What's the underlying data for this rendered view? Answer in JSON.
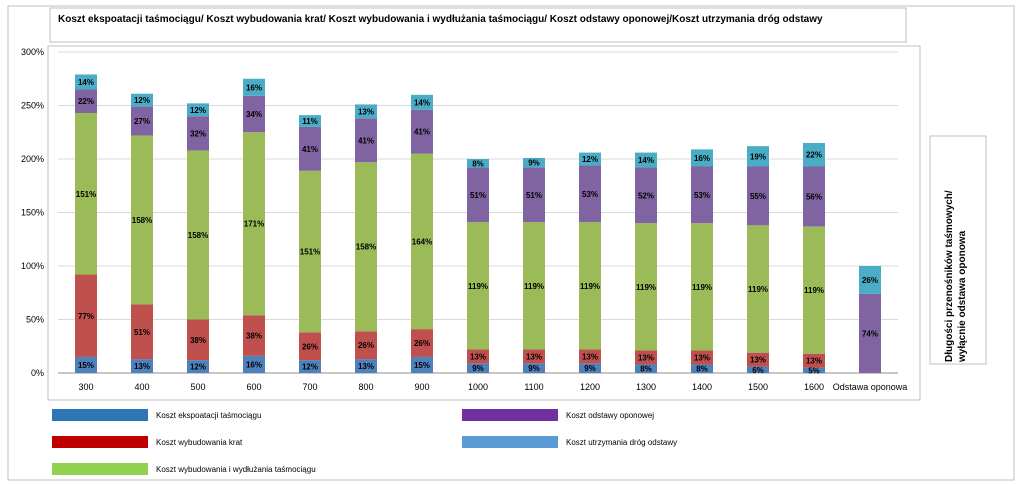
{
  "chart_data": {
    "type": "bar",
    "stacked": true,
    "title": "Koszt ekspoatacji taśmociągu/ Koszt wybudowania krat/ Koszt wybudowania i wydłużania taśmociągu/ Koszt odstawy oponowej/Koszt utrzymania dróg odstawy",
    "side_label_lines": [
      "Długości przenośników  taśmowych/",
      "wyłącnie odstawa oponowa"
    ],
    "categories": [
      "300",
      "400",
      "500",
      "600",
      "700",
      "800",
      "900",
      "1000",
      "1100",
      "1200",
      "1300",
      "1400",
      "1500",
      "1600",
      "Odstawa oponowa"
    ],
    "ylim": [
      0,
      300
    ],
    "yticks": [
      0,
      50,
      100,
      150,
      200,
      250,
      300
    ],
    "ytick_labels": [
      "0%",
      "50%",
      "100%",
      "150%",
      "200%",
      "250%",
      "300%"
    ],
    "grid": true,
    "legend_position": "bottom",
    "series": [
      {
        "name": "Koszt ekspoatacji taśmociągu",
        "color": "#4F81BD",
        "legend_color": "#2E75B6",
        "values": [
          15,
          13,
          12,
          16,
          12,
          13,
          15,
          9,
          9,
          9,
          8,
          8,
          6,
          5,
          0
        ],
        "labels": [
          "15%",
          "13%",
          "12%",
          "16%",
          "12%",
          "13%",
          "15%",
          "9%",
          "9%",
          "9%",
          "8%",
          "8%",
          "6%",
          "5%",
          ""
        ]
      },
      {
        "name": "Koszt wybudowania krat",
        "color": "#C0504D",
        "legend_color": "#C00000",
        "values": [
          77,
          51,
          38,
          38,
          26,
          26,
          26,
          13,
          13,
          13,
          13,
          13,
          13,
          13,
          0
        ],
        "labels": [
          "77%",
          "51%",
          "38%",
          "38%",
          "26%",
          "26%",
          "26%",
          "13%",
          "13%",
          "13%",
          "13%",
          "13%",
          "13%",
          "13%",
          ""
        ]
      },
      {
        "name": "Koszt wybudowania i wydłużania taśmociągu",
        "color": "#9BBB59",
        "legend_color": "#92D050",
        "values": [
          151,
          158,
          158,
          171,
          151,
          158,
          164,
          119,
          119,
          119,
          119,
          119,
          119,
          119,
          0
        ],
        "labels": [
          "151%",
          "158%",
          "158%",
          "171%",
          "151%",
          "158%",
          "164%",
          "119%",
          "119%",
          "119%",
          "119%",
          "119%",
          "119%",
          "119%",
          ""
        ]
      },
      {
        "name": "Koszt odstawy oponowej",
        "color": "#8064A2",
        "legend_color": "#7030A0",
        "values": [
          22,
          27,
          32,
          34,
          41,
          41,
          41,
          51,
          51,
          53,
          52,
          53,
          55,
          56,
          74
        ],
        "labels": [
          "22%",
          "27%",
          "32%",
          "34%",
          "41%",
          "41%",
          "41%",
          "51%",
          "51%",
          "53%",
          "52%",
          "53%",
          "55%",
          "56%",
          "74%"
        ]
      },
      {
        "name": "Koszt utrzymania dróg odstawy",
        "color": "#4BACC6",
        "legend_color": "#5B9BD5",
        "values": [
          14,
          12,
          12,
          16,
          11,
          13,
          14,
          8,
          9,
          12,
          14,
          16,
          19,
          22,
          26
        ],
        "labels": [
          "14%",
          "12%",
          "12%",
          "16%",
          "11%",
          "13%",
          "14%",
          "8%",
          "9%",
          "12%",
          "14%",
          "16%",
          "19%",
          "22%",
          "26%"
        ]
      }
    ],
    "legend_order": [
      0,
      3,
      1,
      4,
      2
    ]
  }
}
